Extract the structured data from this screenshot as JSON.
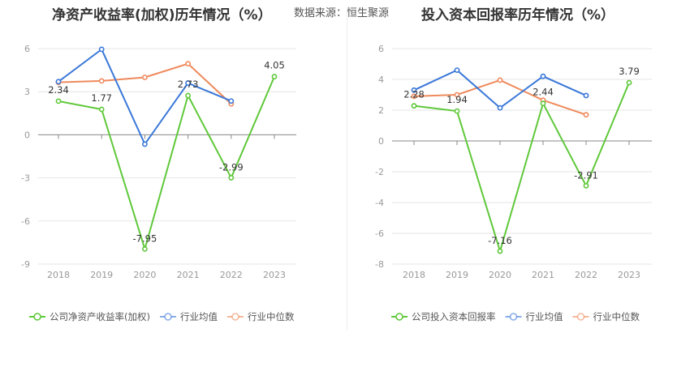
{
  "source_text": "数据来源：恒生聚源",
  "colors": {
    "company": "#5fc83a",
    "avg": "#3a78d8",
    "median": "#ee8a5c",
    "axis": "#888888",
    "grid": "#e6e6e6",
    "tick": "#999999"
  },
  "chart_data": [
    {
      "type": "line",
      "title": "净资产收益率(加权)历年情况（%）",
      "categories": [
        "2018",
        "2019",
        "2020",
        "2021",
        "2022",
        "2023"
      ],
      "yticks": [
        6,
        3,
        0,
        -3,
        -6,
        -9
      ],
      "ylim": [
        -9,
        6
      ],
      "series": [
        {
          "name": "公司净资产收益率(加权)",
          "key": "company",
          "values": [
            2.34,
            1.77,
            -7.95,
            2.73,
            -2.99,
            4.05
          ],
          "labels": [
            "2.34",
            "1.77",
            "-7.95",
            "2.73",
            "-2.99",
            "4.05"
          ]
        },
        {
          "name": "行业均值",
          "key": "avg",
          "values": [
            3.7,
            5.95,
            -0.65,
            3.6,
            2.35,
            null
          ]
        },
        {
          "name": "行业中位数",
          "key": "median",
          "values": [
            3.65,
            3.75,
            4.0,
            4.95,
            2.15,
            null
          ]
        }
      ],
      "legend": "bottom"
    },
    {
      "type": "line",
      "title": "投入资本回报率历年情况（%）",
      "categories": [
        "2018",
        "2019",
        "2020",
        "2021",
        "2022",
        "2023"
      ],
      "yticks": [
        6,
        4,
        2,
        0,
        -2,
        -4,
        -6,
        -8
      ],
      "ylim": [
        -8,
        6
      ],
      "series": [
        {
          "name": "公司投入资本回报率",
          "key": "company",
          "values": [
            2.28,
            1.94,
            -7.16,
            2.44,
            -2.91,
            3.79
          ],
          "labels": [
            "2.28",
            "1.94",
            "-7.16",
            "2.44",
            "-2.91",
            "3.79"
          ]
        },
        {
          "name": "行业均值",
          "key": "avg",
          "values": [
            3.3,
            4.6,
            2.15,
            4.2,
            2.95,
            null
          ]
        },
        {
          "name": "行业中位数",
          "key": "median",
          "values": [
            2.9,
            3.0,
            3.95,
            2.65,
            1.7,
            null
          ]
        }
      ],
      "legend": "bottom"
    }
  ]
}
